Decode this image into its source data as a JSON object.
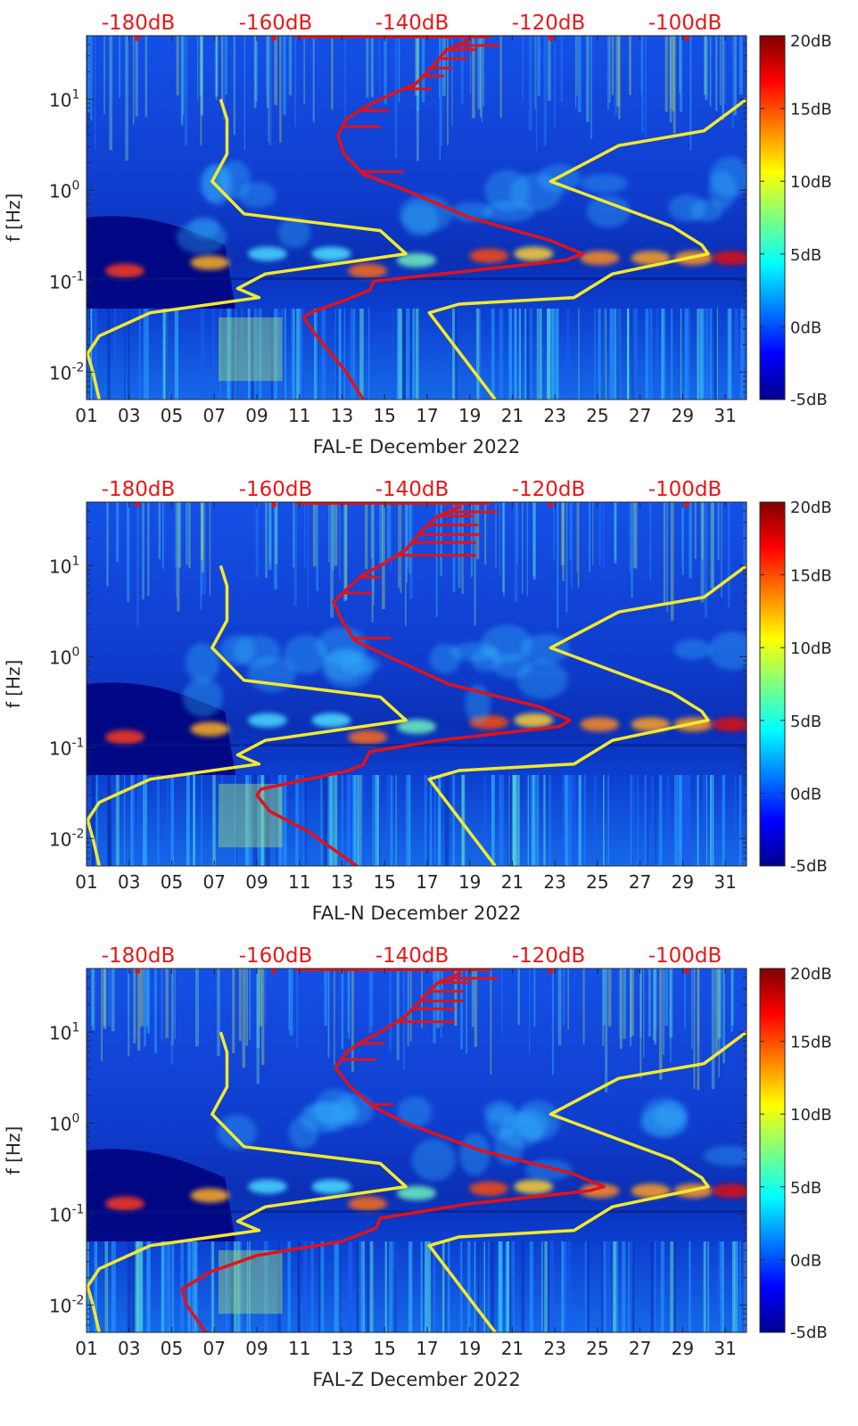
{
  "colors": {
    "red": "#e0121a",
    "yellow": "#f2e92e",
    "axis": "#262626",
    "red_label": "#e81818"
  },
  "chart_data": [
    {
      "type": "heatmap",
      "station": "FAL-E",
      "xlabel": "FAL-E December 2022",
      "ylabel": "f [Hz]",
      "x_ticks": [
        "01",
        "03",
        "05",
        "07",
        "09",
        "11",
        "13",
        "15",
        "17",
        "19",
        "21",
        "23",
        "25",
        "27",
        "29",
        "31"
      ],
      "x_range_day": [
        1,
        32
      ],
      "y_scale": "log",
      "y_range_hz": [
        0.005,
        50
      ],
      "y_ticks": [
        {
          "label": "10",
          "exp": "1",
          "value": 10
        },
        {
          "label": "10",
          "exp": "0",
          "value": 1
        },
        {
          "label": "10",
          "exp": "-1",
          "value": 0.1
        },
        {
          "label": "10",
          "exp": "-2",
          "value": 0.01
        }
      ],
      "top_axis_labels": [
        "-180dB",
        "-160dB",
        "-140dB",
        "-120dB",
        "-100dB"
      ],
      "colorbar": {
        "min_db": -5,
        "max_db": 20,
        "labels": [
          "20dB",
          "15dB",
          "10dB",
          "5dB",
          "0dB",
          "-5dB"
        ]
      },
      "red_curve": [
        [
          14.0,
          0.005
        ],
        [
          13.2,
          0.01
        ],
        [
          11.8,
          0.025
        ],
        [
          11.2,
          0.04
        ],
        [
          11.5,
          0.045
        ],
        [
          13.4,
          0.065
        ],
        [
          14.3,
          0.08
        ],
        [
          14.5,
          0.1
        ],
        [
          19.0,
          0.13
        ],
        [
          23.5,
          0.17
        ],
        [
          24.3,
          0.2
        ],
        [
          22.8,
          0.28
        ],
        [
          19.0,
          0.5
        ],
        [
          16.0,
          1.0
        ],
        [
          14.0,
          1.5
        ],
        [
          13.1,
          2.5
        ],
        [
          12.8,
          4
        ],
        [
          13.2,
          6
        ],
        [
          14.0,
          8
        ],
        [
          14.8,
          10
        ],
        [
          16.5,
          15
        ],
        [
          17.4,
          25
        ],
        [
          17.9,
          35
        ],
        [
          19.0,
          45
        ]
      ],
      "red_spikes": [
        [
          15.9,
          1.6
        ],
        [
          14.8,
          5.0
        ],
        [
          15.2,
          7.5
        ],
        [
          17.2,
          13
        ],
        [
          17.8,
          18
        ],
        [
          18.2,
          22
        ],
        [
          18.9,
          28
        ],
        [
          19.3,
          35
        ],
        [
          20.4,
          39
        ]
      ],
      "yellow_left": [
        [
          1.6,
          0.005
        ],
        [
          1.3,
          0.01
        ],
        [
          1.05,
          0.016
        ],
        [
          1.6,
          0.025
        ],
        [
          4.0,
          0.045
        ],
        [
          9.1,
          0.066
        ],
        [
          8.1,
          0.083
        ],
        [
          9.4,
          0.12
        ],
        [
          16.0,
          0.2
        ],
        [
          14.8,
          0.36
        ],
        [
          8.4,
          0.55
        ],
        [
          6.9,
          1.25
        ],
        [
          7.6,
          2.5
        ],
        [
          7.6,
          6
        ],
        [
          7.3,
          10
        ]
      ],
      "yellow_right": [
        [
          20.2,
          0.005
        ],
        [
          17.1,
          0.045
        ],
        [
          18.5,
          0.056
        ],
        [
          23.9,
          0.066
        ],
        [
          25.7,
          0.12
        ],
        [
          30.2,
          0.2
        ],
        [
          29.9,
          0.25
        ],
        [
          28.5,
          0.4
        ],
        [
          22.8,
          1.25
        ],
        [
          26.0,
          3.1
        ],
        [
          30.0,
          4.5
        ],
        [
          32.0,
          10
        ]
      ]
    },
    {
      "type": "heatmap",
      "station": "FAL-N",
      "xlabel": "FAL-N December 2022",
      "ylabel": "f [Hz]",
      "x_ticks": [
        "01",
        "03",
        "05",
        "07",
        "09",
        "11",
        "13",
        "15",
        "17",
        "19",
        "21",
        "23",
        "25",
        "27",
        "29",
        "31"
      ],
      "x_range_day": [
        1,
        32
      ],
      "y_scale": "log",
      "y_range_hz": [
        0.005,
        50
      ],
      "y_ticks": [
        {
          "label": "10",
          "exp": "1",
          "value": 10
        },
        {
          "label": "10",
          "exp": "0",
          "value": 1
        },
        {
          "label": "10",
          "exp": "-1",
          "value": 0.1
        },
        {
          "label": "10",
          "exp": "-2",
          "value": 0.01
        }
      ],
      "top_axis_labels": [
        "-180dB",
        "-160dB",
        "-140dB",
        "-120dB",
        "-100dB"
      ],
      "colorbar": {
        "min_db": -5,
        "max_db": 20,
        "labels": [
          "20dB",
          "15dB",
          "10dB",
          "5dB",
          "0dB",
          "-5dB"
        ]
      },
      "red_curve": [
        [
          13.7,
          0.005
        ],
        [
          11.4,
          0.012
        ],
        [
          9.6,
          0.02
        ],
        [
          9.0,
          0.03
        ],
        [
          9.2,
          0.035
        ],
        [
          13.2,
          0.055
        ],
        [
          14.0,
          0.065
        ],
        [
          14.3,
          0.09
        ],
        [
          17.5,
          0.12
        ],
        [
          23.2,
          0.17
        ],
        [
          23.7,
          0.2
        ],
        [
          22.3,
          0.28
        ],
        [
          18.0,
          0.5
        ],
        [
          15.2,
          1.0
        ],
        [
          13.6,
          1.5
        ],
        [
          13.0,
          2.5
        ],
        [
          12.6,
          4
        ],
        [
          13.4,
          6
        ],
        [
          14.0,
          8
        ],
        [
          14.8,
          10
        ],
        [
          16.0,
          15
        ],
        [
          16.8,
          25
        ],
        [
          17.5,
          35
        ],
        [
          18.6,
          45
        ]
      ],
      "red_spikes": [
        [
          15.3,
          1.6
        ],
        [
          14.4,
          5.0
        ],
        [
          14.8,
          7.5
        ],
        [
          19.3,
          13
        ],
        [
          19.3,
          18
        ],
        [
          19.5,
          22
        ],
        [
          19.4,
          28
        ],
        [
          19.2,
          35
        ],
        [
          20.3,
          39
        ]
      ],
      "yellow_left": [
        [
          1.6,
          0.005
        ],
        [
          1.3,
          0.01
        ],
        [
          1.05,
          0.016
        ],
        [
          1.6,
          0.025
        ],
        [
          4.0,
          0.045
        ],
        [
          9.1,
          0.066
        ],
        [
          8.1,
          0.083
        ],
        [
          9.4,
          0.12
        ],
        [
          16.0,
          0.2
        ],
        [
          14.8,
          0.36
        ],
        [
          8.4,
          0.55
        ],
        [
          6.9,
          1.25
        ],
        [
          7.6,
          2.5
        ],
        [
          7.6,
          6
        ],
        [
          7.3,
          10
        ]
      ],
      "yellow_right": [
        [
          20.2,
          0.005
        ],
        [
          17.1,
          0.045
        ],
        [
          18.5,
          0.056
        ],
        [
          23.9,
          0.066
        ],
        [
          25.7,
          0.12
        ],
        [
          30.2,
          0.2
        ],
        [
          29.9,
          0.25
        ],
        [
          28.5,
          0.4
        ],
        [
          22.8,
          1.25
        ],
        [
          26.0,
          3.1
        ],
        [
          30.0,
          4.5
        ],
        [
          32.0,
          10
        ]
      ]
    },
    {
      "type": "heatmap",
      "station": "FAL-Z",
      "xlabel": "FAL-Z December 2022",
      "ylabel": "f [Hz]",
      "x_ticks": [
        "01",
        "03",
        "05",
        "07",
        "09",
        "11",
        "13",
        "15",
        "17",
        "19",
        "21",
        "23",
        "25",
        "27",
        "29",
        "31"
      ],
      "x_range_day": [
        1,
        32
      ],
      "y_scale": "log",
      "y_range_hz": [
        0.005,
        50
      ],
      "y_ticks": [
        {
          "label": "10",
          "exp": "1",
          "value": 10
        },
        {
          "label": "10",
          "exp": "0",
          "value": 1
        },
        {
          "label": "10",
          "exp": "-1",
          "value": 0.1
        },
        {
          "label": "10",
          "exp": "-2",
          "value": 0.01
        }
      ],
      "top_axis_labels": [
        "-180dB",
        "-160dB",
        "-140dB",
        "-120dB",
        "-100dB"
      ],
      "colorbar": {
        "min_db": -5,
        "max_db": 20,
        "labels": [
          "20dB",
          "15dB",
          "10dB",
          "5dB",
          "0dB",
          "-5dB"
        ]
      },
      "red_curve": [
        [
          6.6,
          0.005
        ],
        [
          5.7,
          0.01
        ],
        [
          5.5,
          0.015
        ],
        [
          6.8,
          0.023
        ],
        [
          9.0,
          0.035
        ],
        [
          13.0,
          0.05
        ],
        [
          14.6,
          0.07
        ],
        [
          14.8,
          0.09
        ],
        [
          19.0,
          0.13
        ],
        [
          24.6,
          0.18
        ],
        [
          25.3,
          0.2
        ],
        [
          23.8,
          0.28
        ],
        [
          19.5,
          0.5
        ],
        [
          16.0,
          1.0
        ],
        [
          14.5,
          1.5
        ],
        [
          13.4,
          2.5
        ],
        [
          12.7,
          4
        ],
        [
          13.2,
          6
        ],
        [
          14.0,
          8
        ],
        [
          14.8,
          10
        ],
        [
          16.0,
          15
        ],
        [
          16.9,
          25
        ],
        [
          17.5,
          35
        ],
        [
          18.6,
          45
        ]
      ],
      "red_spikes": [
        [
          15.4,
          1.6
        ],
        [
          14.6,
          5.0
        ],
        [
          15.0,
          7.5
        ],
        [
          18.3,
          13
        ],
        [
          18.3,
          18
        ],
        [
          18.7,
          22
        ],
        [
          18.7,
          28
        ],
        [
          19.0,
          35
        ],
        [
          20.3,
          39
        ]
      ],
      "yellow_left": [
        [
          1.6,
          0.005
        ],
        [
          1.3,
          0.01
        ],
        [
          1.05,
          0.016
        ],
        [
          1.6,
          0.025
        ],
        [
          4.0,
          0.045
        ],
        [
          9.1,
          0.066
        ],
        [
          8.1,
          0.083
        ],
        [
          9.4,
          0.12
        ],
        [
          16.0,
          0.2
        ],
        [
          14.8,
          0.36
        ],
        [
          8.4,
          0.55
        ],
        [
          6.9,
          1.25
        ],
        [
          7.6,
          2.5
        ],
        [
          7.6,
          6
        ],
        [
          7.3,
          10
        ]
      ],
      "yellow_right": [
        [
          20.2,
          0.005
        ],
        [
          17.1,
          0.045
        ],
        [
          18.5,
          0.056
        ],
        [
          23.9,
          0.066
        ],
        [
          25.7,
          0.12
        ],
        [
          30.2,
          0.2
        ],
        [
          29.9,
          0.25
        ],
        [
          28.5,
          0.4
        ],
        [
          22.8,
          1.25
        ],
        [
          26.0,
          3.1
        ],
        [
          30.0,
          4.5
        ],
        [
          32.0,
          10
        ]
      ]
    }
  ]
}
